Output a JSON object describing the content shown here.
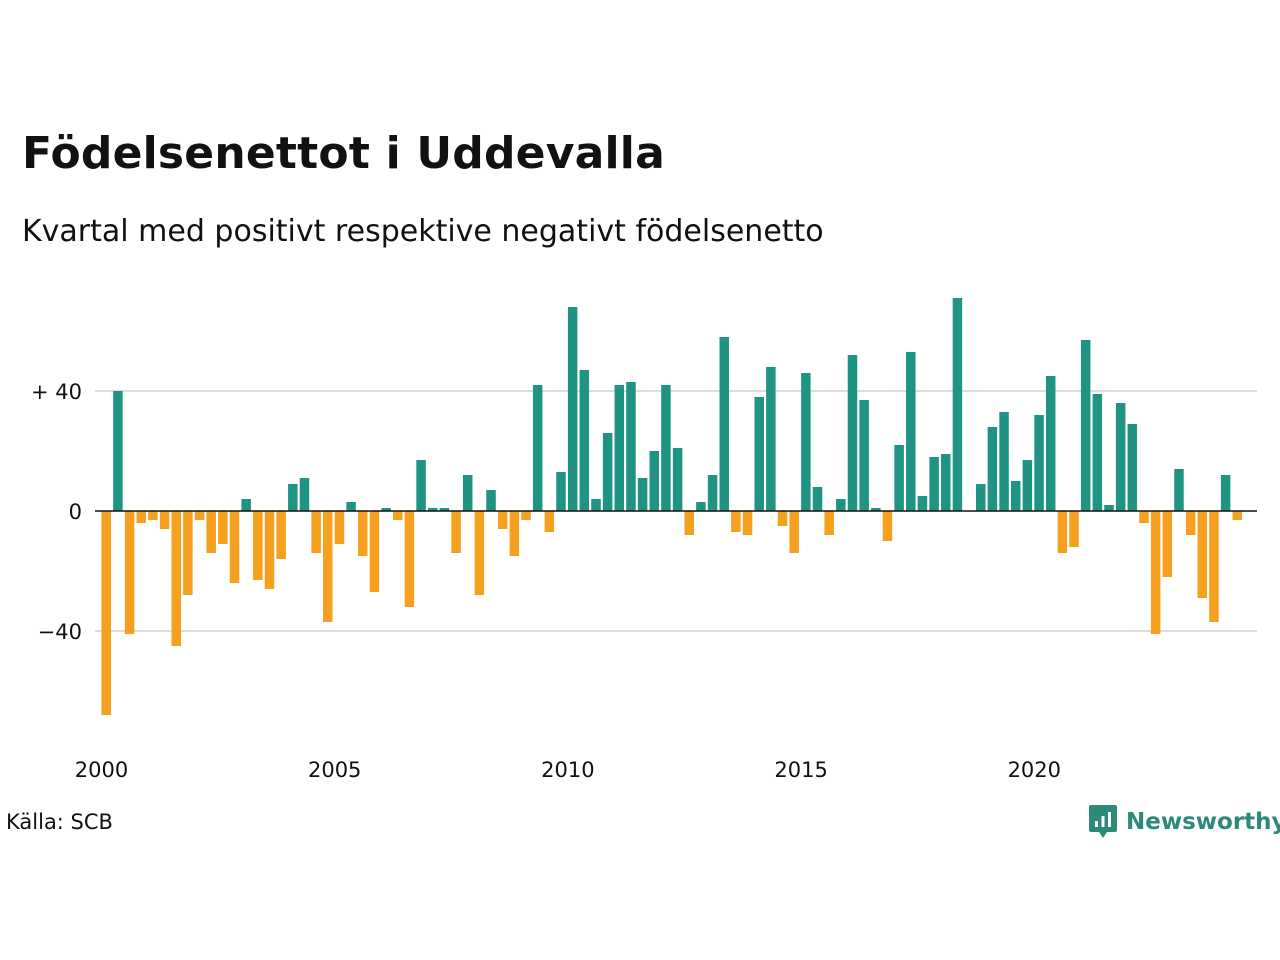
{
  "header": {
    "title": "Födelsenettot i Uddevalla",
    "subtitle": "Kvartal med positivt respektive negativt födelsenetto"
  },
  "footer": {
    "source": "Källa: SCB",
    "brand": "Newsworthy",
    "brand_icon": "newsworthy-logo-icon"
  },
  "colors": {
    "positive": "#1f9485",
    "negative": "#f5a01e",
    "grid": "#dddddd",
    "zero_line": "#111111",
    "brand": "#2d8a7b"
  },
  "chart_data": {
    "type": "bar",
    "title": "Födelsenettot i Uddevalla",
    "subtitle": "Kvartal med positivt respektive negativt födelsenetto",
    "x_start": "2000 Q1",
    "x_tick_labels": [
      "2000",
      "2005",
      "2010",
      "2015",
      "2020"
    ],
    "y_tick_labels": [
      "+ 40",
      "0",
      "−40"
    ],
    "y_ticks": [
      40,
      0,
      -40
    ],
    "ylim": [
      -72,
      76
    ],
    "grid": true,
    "values": [
      -68,
      40,
      -41,
      -4,
      -3,
      -6,
      -45,
      -28,
      -3,
      -14,
      -11,
      -24,
      4,
      -23,
      -26,
      -16,
      9,
      11,
      -14,
      -37,
      -11,
      3,
      -15,
      -27,
      1,
      -3,
      -32,
      17,
      1,
      1,
      -14,
      12,
      -28,
      7,
      -6,
      -15,
      -3,
      42,
      -7,
      13,
      68,
      47,
      4,
      26,
      42,
      43,
      11,
      20,
      42,
      21,
      -8,
      3,
      12,
      58,
      -7,
      -8,
      38,
      48,
      -5,
      -14,
      46,
      8,
      -8,
      4,
      52,
      37,
      1,
      -10,
      22,
      53,
      5,
      18,
      19,
      71,
      0,
      9,
      28,
      33,
      10,
      17,
      32,
      45,
      -14,
      -12,
      57,
      39,
      2,
      36,
      29,
      -4,
      -41,
      -22,
      14,
      -8,
      -29,
      -37,
      12,
      -3
    ]
  }
}
